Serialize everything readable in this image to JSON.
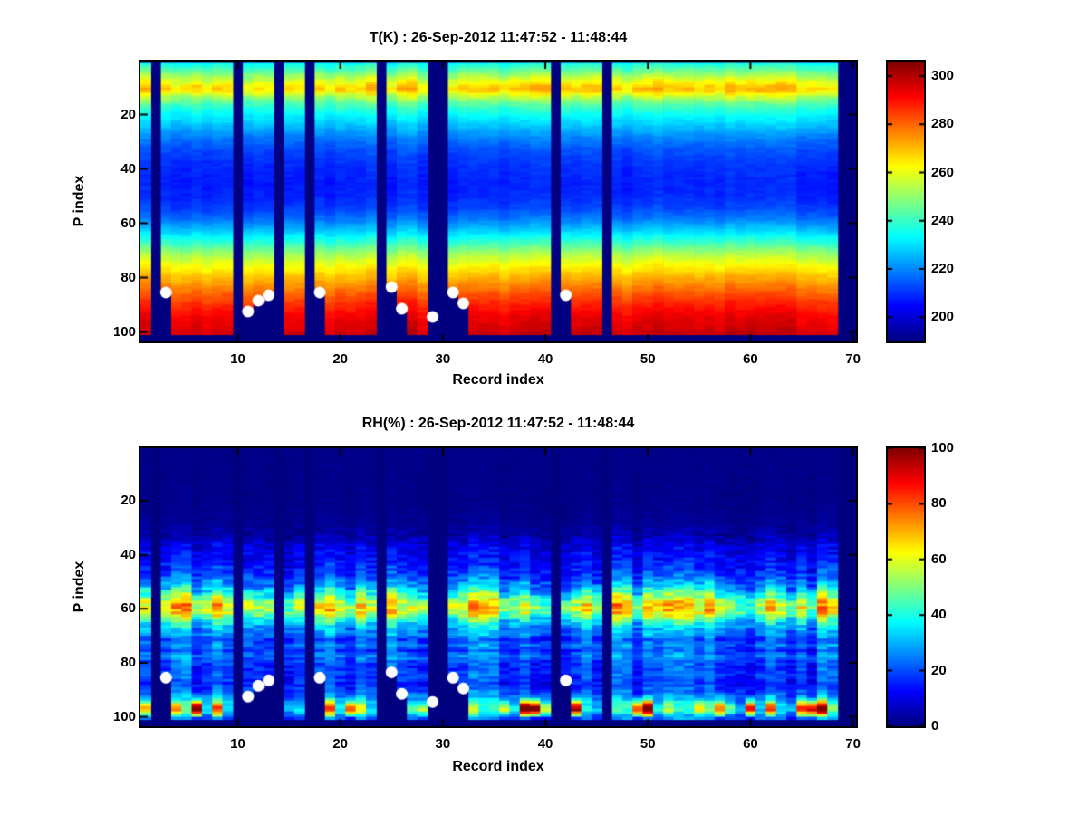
{
  "figure": {
    "background": "#ffffff",
    "colormap": "jet",
    "marker_color": "#ffffff",
    "missing_color": "#000080",
    "axes_color": "#000000"
  },
  "chart_data": [
    {
      "type": "heatmap",
      "title": "T(K) : 26-Sep-2012 11:47:52 - 11:48:44",
      "xlabel": "Record index",
      "ylabel": "P index",
      "x_ticks": [
        10,
        20,
        30,
        40,
        50,
        60,
        70
      ],
      "y_ticks": [
        20,
        40,
        60,
        80,
        100
      ],
      "n_records": 70,
      "n_levels": 100,
      "colorbar": {
        "min": 190,
        "max": 306,
        "ticks": [
          300,
          280,
          260,
          240,
          220,
          200
        ]
      },
      "missing_records": [
        2,
        10,
        14,
        17,
        24,
        29,
        30,
        41,
        46,
        69,
        70
      ],
      "surface_dots": [
        [
          3,
          85
        ],
        [
          11,
          92
        ],
        [
          12,
          88
        ],
        [
          13,
          86
        ],
        [
          18,
          85
        ],
        [
          25,
          83
        ],
        [
          26,
          91
        ],
        [
          29,
          94
        ],
        [
          31,
          85
        ],
        [
          32,
          89
        ],
        [
          42,
          86
        ]
      ],
      "profile": [
        [
          1,
          236
        ],
        [
          3,
          243
        ],
        [
          5,
          251
        ],
        [
          7,
          259
        ],
        [
          9,
          266
        ],
        [
          10,
          268
        ],
        [
          11,
          266
        ],
        [
          13,
          254
        ],
        [
          15,
          245
        ],
        [
          17,
          239
        ],
        [
          20,
          233
        ],
        [
          24,
          226
        ],
        [
          28,
          219
        ],
        [
          32,
          214
        ],
        [
          36,
          211
        ],
        [
          40,
          209
        ],
        [
          45,
          208
        ],
        [
          50,
          209
        ],
        [
          54,
          212
        ],
        [
          58,
          218
        ],
        [
          62,
          227
        ],
        [
          66,
          238
        ],
        [
          70,
          250
        ],
        [
          74,
          260
        ],
        [
          78,
          268
        ],
        [
          82,
          275
        ],
        [
          86,
          282
        ],
        [
          90,
          288
        ],
        [
          94,
          293
        ],
        [
          97,
          295
        ],
        [
          100,
          297
        ]
      ],
      "col_noise": [
        [
          1,
          3
        ],
        [
          6,
          5
        ],
        [
          9,
          6
        ],
        [
          13,
          6
        ],
        [
          16,
          3
        ],
        [
          30,
          2
        ],
        [
          50,
          2
        ],
        [
          70,
          3
        ],
        [
          100,
          3
        ]
      ],
      "cell_noise": [
        [
          1,
          1.5
        ],
        [
          7,
          2.5
        ],
        [
          13,
          2.5
        ],
        [
          18,
          1.5
        ],
        [
          100,
          1.5
        ]
      ],
      "clamp": [
        190,
        306
      ],
      "seed": 3
    },
    {
      "type": "heatmap",
      "title": "RH(%) : 26-Sep-2012 11:47:52 - 11:48:44",
      "xlabel": "Record index",
      "ylabel": "P index",
      "x_ticks": [
        10,
        20,
        30,
        40,
        50,
        60,
        70
      ],
      "y_ticks": [
        20,
        40,
        60,
        80,
        100
      ],
      "n_records": 70,
      "n_levels": 100,
      "colorbar": {
        "min": 0,
        "max": 100,
        "ticks": [
          100,
          80,
          60,
          40,
          20,
          0
        ]
      },
      "missing_records": [
        2,
        10,
        14,
        17,
        24,
        29,
        30,
        41,
        46,
        69,
        70
      ],
      "surface_dots": [
        [
          3,
          85
        ],
        [
          11,
          92
        ],
        [
          12,
          88
        ],
        [
          13,
          86
        ],
        [
          18,
          85
        ],
        [
          25,
          83
        ],
        [
          26,
          91
        ],
        [
          29,
          94
        ],
        [
          31,
          85
        ],
        [
          32,
          89
        ],
        [
          42,
          86
        ]
      ],
      "profile": [
        [
          1,
          1
        ],
        [
          20,
          1
        ],
        [
          28,
          2
        ],
        [
          32,
          4
        ],
        [
          34,
          7
        ],
        [
          36,
          10
        ],
        [
          39,
          12
        ],
        [
          42,
          14
        ],
        [
          45,
          17
        ],
        [
          48,
          22
        ],
        [
          51,
          30
        ],
        [
          53,
          38
        ],
        [
          55,
          48
        ],
        [
          57,
          57
        ],
        [
          59,
          62
        ],
        [
          61,
          58
        ],
        [
          63,
          46
        ],
        [
          65,
          36
        ],
        [
          67,
          29
        ],
        [
          69,
          27
        ],
        [
          71,
          19
        ],
        [
          73,
          25
        ],
        [
          75,
          19
        ],
        [
          77,
          26
        ],
        [
          79,
          21
        ],
        [
          81,
          18
        ],
        [
          84,
          20
        ],
        [
          87,
          17
        ],
        [
          89,
          19
        ],
        [
          91,
          23
        ],
        [
          93,
          28
        ],
        [
          95,
          34
        ],
        [
          97,
          37
        ],
        [
          98,
          32
        ],
        [
          99,
          26
        ],
        [
          100,
          23
        ]
      ],
      "col_noise": [
        [
          1,
          0
        ],
        [
          28,
          1
        ],
        [
          33,
          3
        ],
        [
          40,
          4
        ],
        [
          46,
          6
        ],
        [
          50,
          10
        ],
        [
          54,
          15
        ],
        [
          58,
          17
        ],
        [
          62,
          15
        ],
        [
          66,
          10
        ],
        [
          70,
          7
        ],
        [
          80,
          7
        ],
        [
          90,
          6
        ],
        [
          95,
          9
        ],
        [
          100,
          7
        ]
      ],
      "cell_noise": [
        [
          1,
          0.4
        ],
        [
          28,
          1
        ],
        [
          33,
          4
        ],
        [
          40,
          5
        ],
        [
          48,
          6
        ],
        [
          54,
          8
        ],
        [
          58,
          9
        ],
        [
          64,
          7
        ],
        [
          70,
          5
        ],
        [
          100,
          5
        ]
      ],
      "spikes": {
        "p_min": 92,
        "p_max": 99,
        "center": 96.5,
        "sigma": 2.0,
        "threshold": 0.45,
        "max_add": 75
      },
      "clamp": [
        0,
        100
      ],
      "seed": 11
    }
  ]
}
